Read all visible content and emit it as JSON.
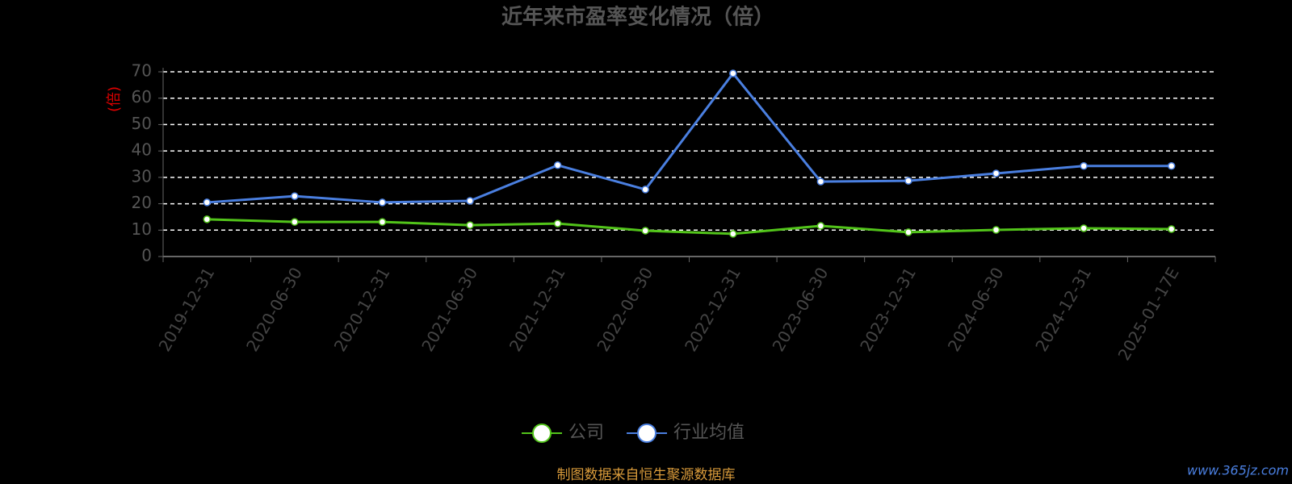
{
  "chart_data": {
    "type": "line",
    "title": "近年来市盈率变化情况（倍）",
    "y_label": "(倍)",
    "source": "制图数据来自恒生聚源数据库",
    "watermark": "www.365jz.com",
    "categories": [
      "2019-12-31",
      "2020-06-30",
      "2020-12-31",
      "2021-06-30",
      "2021-12-31",
      "2022-06-30",
      "2022-12-31",
      "2023-06-30",
      "2023-12-31",
      "2024-06-30",
      "2024-12-31",
      "2025-01-17E"
    ],
    "series": [
      {
        "name": "公司",
        "color": "#52c41a",
        "values": [
          14.1,
          13.1,
          13.1,
          11.9,
          12.5,
          9.8,
          8.6,
          11.6,
          9.2,
          10.1,
          10.7,
          10.4
        ]
      },
      {
        "name": "行业均值",
        "color": "#4a7fe0",
        "values": [
          20.5,
          22.9,
          20.5,
          21.1,
          34.6,
          25.4,
          69.4,
          28.4,
          28.7,
          31.5,
          34.3,
          34.3
        ]
      }
    ],
    "ylim": [
      0,
      70
    ],
    "yticks": [
      0,
      10,
      20,
      30,
      40,
      50,
      60,
      70
    ],
    "grid": true
  }
}
